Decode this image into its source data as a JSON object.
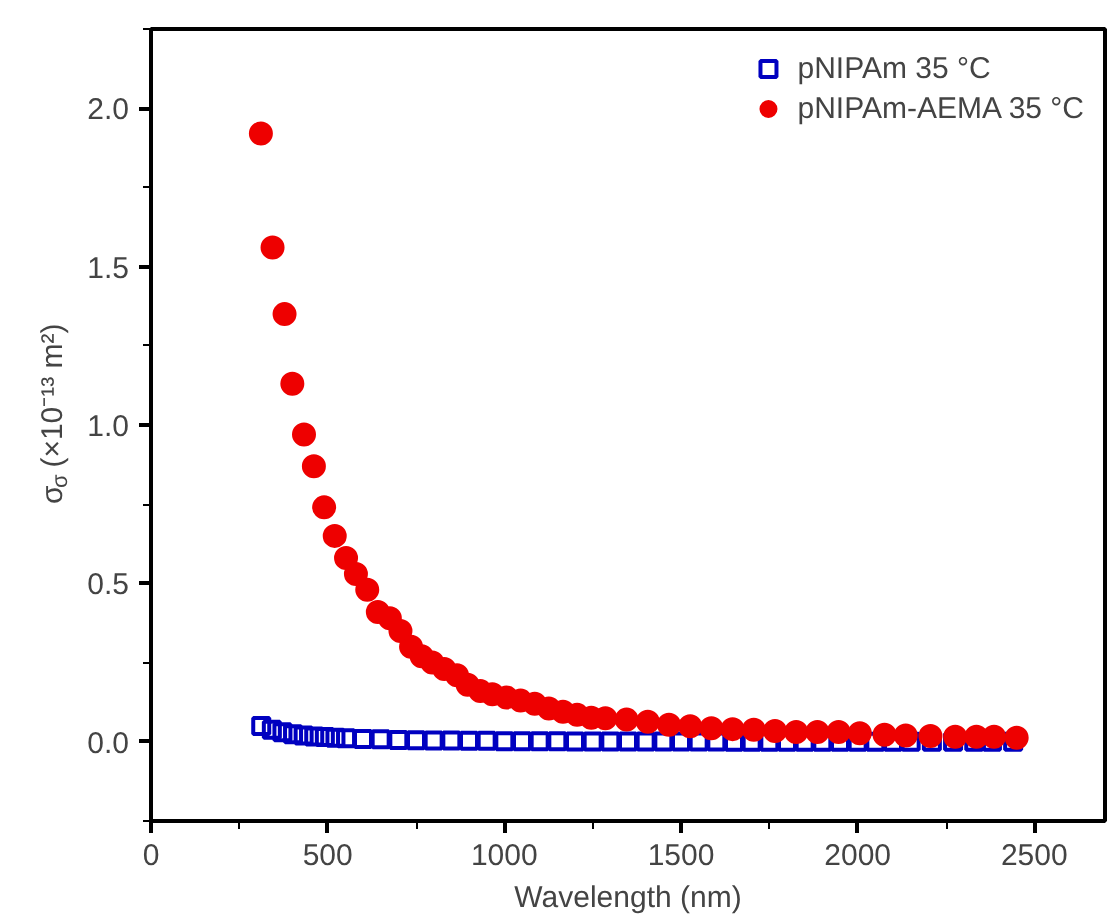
{
  "chart_data": {
    "type": "scatter",
    "xlabel": "Wavelength (nm)",
    "ylabel": "σ$_{σ}$ (×10⁻¹³ m²)",
    "xlim": [
      0,
      2700
    ],
    "ylim": [
      -0.25,
      2.25
    ],
    "xticks": [
      0,
      500,
      1000,
      1500,
      2000,
      2500
    ],
    "yticks": [
      {
        "value": 0,
        "label": "0.0"
      },
      0.5,
      {
        "value": 1,
        "label": "1.0"
      },
      1.5,
      {
        "value": 2,
        "label": "2.0"
      }
    ],
    "grid": false,
    "legend": "top right",
    "series": [
      {
        "name": "pNIPAm 35 °C",
        "color": "#0000c0",
        "marker": "square",
        "x": [
          312,
          342,
          372,
          402,
          432,
          462,
          492,
          522,
          552,
          600,
          650,
          700,
          750,
          800,
          850,
          900,
          950,
          1000,
          1050,
          1100,
          1150,
          1200,
          1250,
          1300,
          1350,
          1400,
          1450,
          1500,
          1550,
          1600,
          1650,
          1700,
          1750,
          1800,
          1850,
          1900,
          1950,
          2000,
          2050,
          2100,
          2150,
          2210,
          2270,
          2330,
          2380,
          2440
        ],
        "values": [
          0.05,
          0.038,
          0.03,
          0.024,
          0.02,
          0.017,
          0.015,
          0.013,
          0.011,
          0.009,
          0.008,
          0.006,
          0.005,
          0.004,
          0.004,
          0.003,
          0.003,
          0.002,
          0.002,
          0.002,
          0.002,
          0.001,
          0.001,
          0.001,
          0.001,
          0.001,
          0.001,
          0.001,
          0.001,
          0.001,
          0.0,
          0.0,
          0.0,
          0.0,
          0.0,
          0.0,
          0.0,
          0.0,
          0.0,
          0.0,
          0.0,
          0.0,
          0.0,
          0.0,
          0.0,
          0.0
        ]
      },
      {
        "name": "pNIPAm-AEMA 35 °C",
        "color": "#ee0000",
        "marker": "circle",
        "x": [
          311,
          344,
          378,
          400,
          433,
          461,
          490,
          520,
          552,
          580,
          612,
          642,
          676,
          706,
          736,
          766,
          796,
          830,
          866,
          896,
          932,
          966,
          1006,
          1046,
          1086,
          1126,
          1166,
          1206,
          1246,
          1286,
          1346,
          1406,
          1466,
          1526,
          1586,
          1646,
          1706,
          1766,
          1826,
          1886,
          1946,
          2006,
          2076,
          2136,
          2206,
          2276,
          2336,
          2386,
          2450
        ],
        "values": [
          1.92,
          1.56,
          1.35,
          1.13,
          0.97,
          0.87,
          0.74,
          0.65,
          0.58,
          0.53,
          0.48,
          0.41,
          0.39,
          0.35,
          0.3,
          0.27,
          0.25,
          0.23,
          0.21,
          0.18,
          0.16,
          0.15,
          0.14,
          0.13,
          0.12,
          0.105,
          0.095,
          0.085,
          0.076,
          0.074,
          0.07,
          0.063,
          0.054,
          0.049,
          0.043,
          0.04,
          0.038,
          0.034,
          0.031,
          0.031,
          0.031,
          0.027,
          0.022,
          0.02,
          0.018,
          0.016,
          0.016,
          0.016,
          0.013
        ]
      }
    ]
  }
}
